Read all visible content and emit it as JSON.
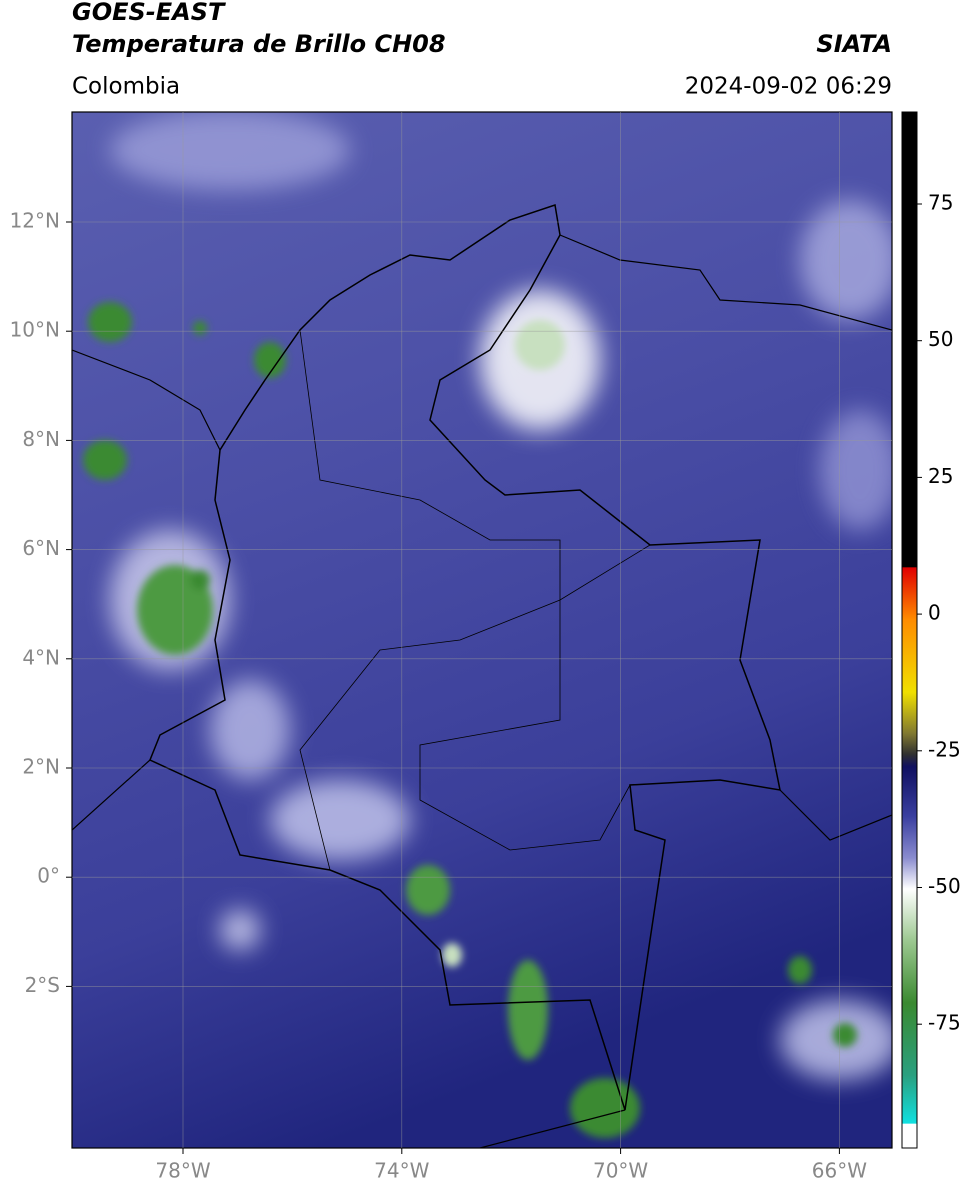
{
  "header": {
    "title": "GOES-EAST",
    "subtitle": "Temperatura de Brillo CH08",
    "region": "Colombia",
    "agency": "SIATA",
    "datetime": "2024-09-02 06:29"
  },
  "map": {
    "lat_labels": [
      "12°N",
      "10°N",
      "8°N",
      "6°N",
      "4°N",
      "2°N",
      "0°",
      "2°S"
    ],
    "lon_labels": [
      "78°W",
      "74°W",
      "70°W",
      "66°W"
    ]
  },
  "colorbar": {
    "labels": [
      "75",
      "50",
      "25",
      "0",
      "-25",
      "-50",
      "-75"
    ]
  }
}
